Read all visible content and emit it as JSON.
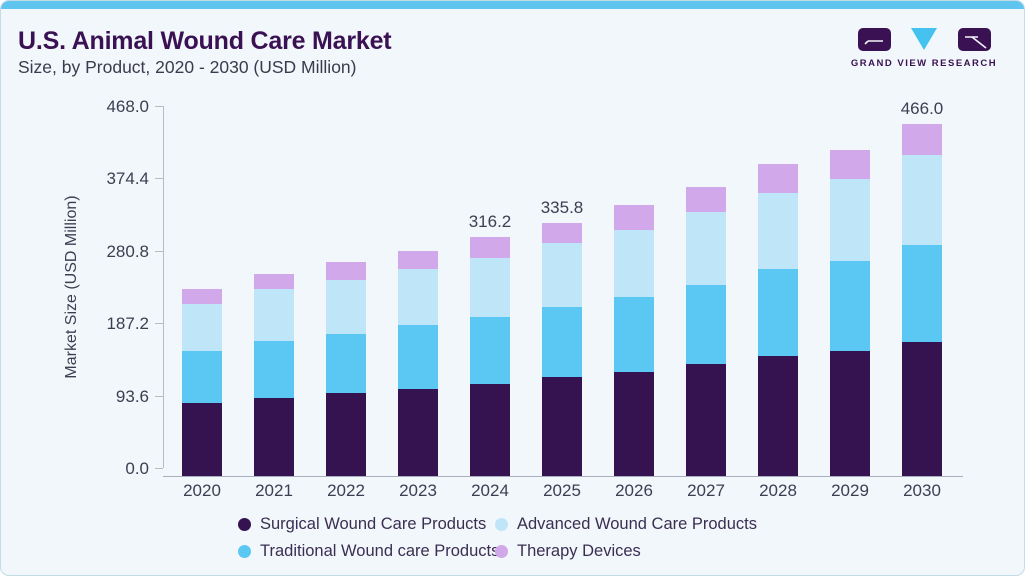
{
  "header": {
    "title": "U.S. Animal Wound Care Market",
    "subtitle": "Size, by Product, 2020 - 2030 (USD Million)"
  },
  "brand": {
    "name": "GRAND VIEW RESEARCH"
  },
  "colors": {
    "card_background": "#f1f7fa",
    "top_accent": "#5fc4ee",
    "logo_triangle": "#45c2f0",
    "brand_purple": "#3a1152",
    "axis_text": "#3e3e52"
  },
  "chart_data": {
    "type": "bar",
    "stacked": true,
    "ylabel": "Market Size (USD Million)",
    "ylim": [
      0,
      468
    ],
    "grid": false,
    "legend_position": "bottom",
    "yticks": [
      {
        "value": 468.0,
        "label": "468.0"
      },
      {
        "value": 374.4,
        "label": "374.4"
      },
      {
        "value": 280.8,
        "label": "280.8"
      },
      {
        "value": 187.2,
        "label": "187.2"
      },
      {
        "value": 93.6,
        "label": "93.6"
      },
      {
        "value": 0.0,
        "label": "0.0"
      }
    ],
    "categories": [
      "2020",
      "2021",
      "2022",
      "2023",
      "2024",
      "2025",
      "2026",
      "2027",
      "2028",
      "2029",
      "2030"
    ],
    "series": [
      {
        "name": "Surgical Wound Care Products",
        "color": "#341350",
        "values": [
          97.1,
          103.7,
          110.4,
          115.7,
          122.0,
          130.9,
          137.8,
          148.8,
          159.0,
          165.6,
          178.0
        ]
      },
      {
        "name": "Traditional Wound care Products",
        "color": "#5ac8f3",
        "values": [
          68.5,
          75.1,
          78.2,
          84.0,
          88.2,
          92.8,
          99.4,
          103.9,
          114.9,
          119.3,
          128.1
        ]
      },
      {
        "name": "Advanced Wound Care Products",
        "color": "#bee6f8",
        "values": [
          61.9,
          68.5,
          71.2,
          74.2,
          78.2,
          85.6,
          88.4,
          97.1,
          101.5,
          108.3,
          118.9
        ]
      },
      {
        "name": "Therapy Devices",
        "color": "#d1a8ea",
        "values": [
          20.7,
          20.7,
          23.9,
          24.3,
          27.8,
          26.5,
          33.1,
          33.1,
          37.6,
          38.8,
          41.0
        ]
      }
    ],
    "annotations": [
      {
        "category": "2024",
        "label": "316.2"
      },
      {
        "category": "2025",
        "label": "335.8"
      },
      {
        "category": "2030",
        "label": "466.0"
      }
    ]
  },
  "legend": {
    "items": [
      {
        "label": "Surgical Wound Care Products",
        "color": "#341350"
      },
      {
        "label": "Advanced Wound Care Products",
        "color": "#bee6f8"
      },
      {
        "label": "Traditional Wound care Products",
        "color": "#5ac8f3"
      },
      {
        "label": "Therapy Devices",
        "color": "#d1a8ea"
      }
    ]
  }
}
